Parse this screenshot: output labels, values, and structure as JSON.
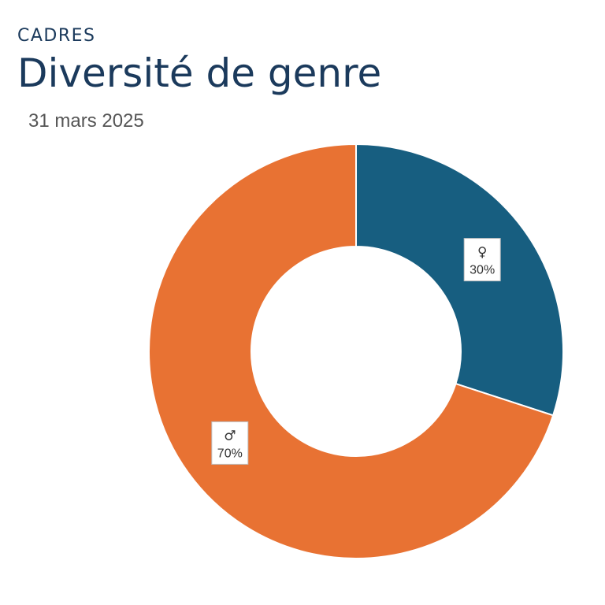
{
  "header": {
    "eyebrow": "CADRES",
    "title": "Diversité de genre",
    "date": "31 mars 2025"
  },
  "chart_data": {
    "type": "pie",
    "donut": true,
    "slices": [
      {
        "symbol": "♀",
        "label": "30%",
        "value": 30,
        "color": "#175e80"
      },
      {
        "symbol": "♂",
        "label": "70%",
        "value": 70,
        "color": "#e87233"
      }
    ]
  }
}
